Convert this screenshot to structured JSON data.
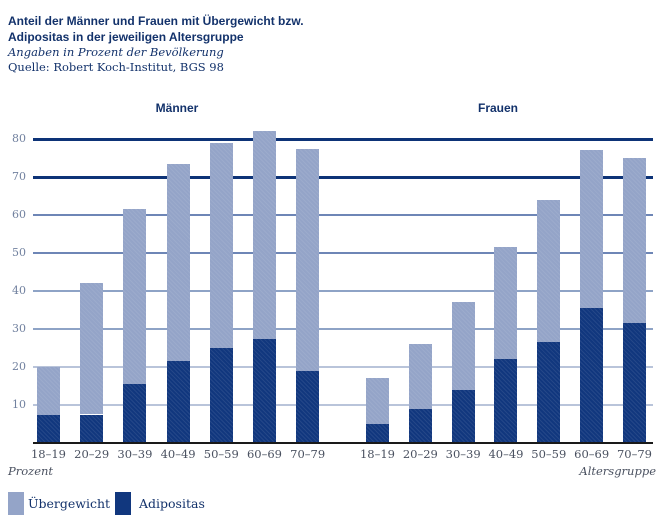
{
  "chart_data": {
    "type": "bar",
    "stacked": true,
    "title_lines": [
      "Anteil der Männer und Frauen mit Übergewicht bzw.",
      "Adipositas in der jeweiligen Altersgruppe"
    ],
    "subtitle": "Angaben in Prozent der Bevölkerung",
    "source": "Quelle: Robert Koch-Institut, BGS 98",
    "ylabel": "Prozent",
    "xlabel": "Altersgruppe",
    "y_ticks": [
      10,
      20,
      30,
      40,
      50,
      60,
      70,
      80
    ],
    "ylim": [
      0,
      85
    ],
    "grid": true,
    "legend": [
      "Übergewicht",
      "Adipositas"
    ],
    "legend_position": "bottom-left",
    "stack_order_bottom_to_top": [
      "Adipositas",
      "Übergewicht"
    ],
    "groups": [
      {
        "label": "Männer",
        "categories": [
          "18–19",
          "20–29",
          "30–39",
          "40–49",
          "50–59",
          "60–69",
          "70–79"
        ],
        "series": [
          {
            "name": "Adipositas",
            "values": [
              7.5,
              7.5,
              15.5,
              21.5,
              25,
              27.5,
              19
            ]
          },
          {
            "name": "Übergewicht",
            "values": [
              12.5,
              34.5,
              46,
              52,
              54,
              54.5,
              58.5
            ]
          }
        ],
        "totals": [
          20,
          42,
          61.5,
          73.5,
          79,
          82,
          77.5
        ]
      },
      {
        "label": "Frauen",
        "categories": [
          "18–19",
          "20–29",
          "30–39",
          "40–49",
          "50–59",
          "60–69",
          "70–79"
        ],
        "series": [
          {
            "name": "Adipositas",
            "values": [
              5,
              9,
              14,
              22,
              26.5,
              35.5,
              31.5
            ]
          },
          {
            "name": "Übergewicht",
            "values": [
              12,
              17,
              23,
              29.5,
              37.5,
              41.5,
              43.5
            ]
          }
        ],
        "totals": [
          17,
          26,
          37,
          51.5,
          64,
          77,
          75
        ]
      }
    ],
    "colors": {
      "adipositas": "#11377e",
      "uebergewicht": "#94a4c8",
      "gridline_dark": "#0d3377",
      "gridline_medium": "#6e86b6",
      "gridline_light": "#8ea3c6",
      "gridline_faint": "#b9c4da",
      "baseline": "#1a1a1a",
      "text_navy": "#13326b"
    }
  }
}
